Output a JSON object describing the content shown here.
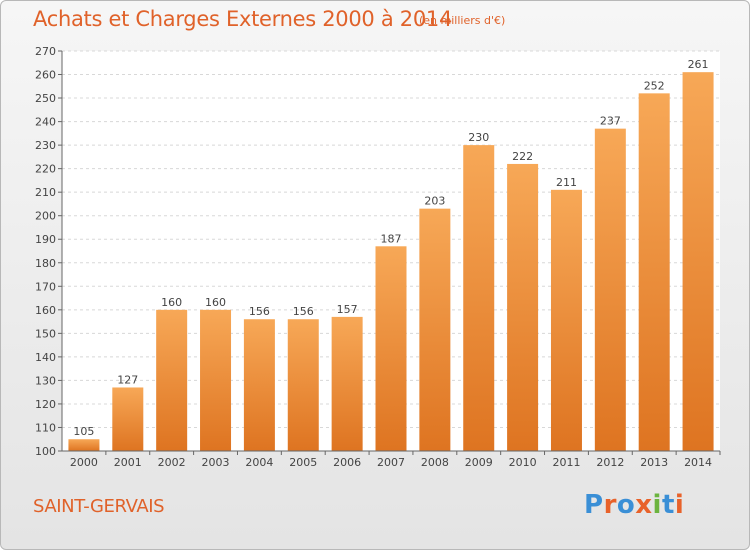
{
  "header": {
    "title": "Achats et Charges Externes 2000 à 2014",
    "unit": "(en milliers d'€)"
  },
  "footer": {
    "city": "SAINT-GERVAIS",
    "logo": [
      "P",
      "r",
      "o",
      "x",
      "i",
      "t",
      "i"
    ],
    "logo_colors": [
      "#3a8fd6",
      "#e8622a",
      "#3a8fd6",
      "#e8622a",
      "#6cb43f",
      "#3a8fd6",
      "#e8622a"
    ]
  },
  "colors": {
    "bar_top": "#f7a857",
    "bar_bottom": "#de7421",
    "accent": "#e0622a"
  },
  "chart_data": {
    "type": "bar",
    "categories": [
      "2000",
      "2001",
      "2002",
      "2003",
      "2004",
      "2005",
      "2006",
      "2007",
      "2008",
      "2009",
      "2010",
      "2011",
      "2012",
      "2013",
      "2014"
    ],
    "values": [
      105,
      127,
      160,
      160,
      156,
      156,
      157,
      187,
      203,
      230,
      222,
      211,
      237,
      252,
      261
    ],
    "title": "Achats et Charges Externes 2000 à 2014",
    "ylim": [
      100,
      270
    ],
    "yticks": [
      100,
      110,
      120,
      130,
      140,
      150,
      160,
      170,
      180,
      190,
      200,
      210,
      220,
      230,
      240,
      250,
      260,
      270
    ],
    "grid": true,
    "legend": "none"
  }
}
